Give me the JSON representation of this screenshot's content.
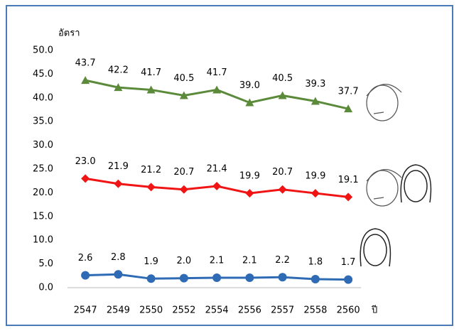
{
  "chart_data": {
    "type": "line",
    "y_label": "อัตรา",
    "x_label": "ปี",
    "categories": [
      "2547",
      "2549",
      "2550",
      "2552",
      "2554",
      "2556",
      "2557",
      "2558",
      "2560"
    ],
    "series": [
      {
        "color": "#5b8a3a",
        "marker": "triangle",
        "values": [
          43.7,
          42.2,
          41.7,
          40.5,
          41.7,
          39.0,
          40.5,
          39.3,
          37.7
        ],
        "value_labels": [
          "43.7",
          "42.2",
          "41.7",
          "40.5",
          "41.7",
          "39.0",
          "40.5",
          "39.3",
          "37.7"
        ]
      },
      {
        "color": "#f01414",
        "marker": "diamond",
        "values": [
          23.0,
          21.9,
          21.2,
          20.7,
          21.4,
          19.9,
          20.7,
          19.9,
          19.1
        ],
        "value_labels": [
          "23.0",
          "21.9",
          "21.2",
          "20.7",
          "21.4",
          "19.9",
          "20.7",
          "19.9",
          "19.1"
        ]
      },
      {
        "color": "#2f6bb5",
        "marker": "circle",
        "values": [
          2.6,
          2.8,
          1.9,
          2.0,
          2.1,
          2.1,
          2.2,
          1.8,
          1.7
        ],
        "value_labels": [
          "2.6",
          "2.8",
          "1.9",
          "2.0",
          "2.1",
          "2.1",
          "2.2",
          "1.8",
          "1.7"
        ]
      }
    ],
    "ylim": [
      0,
      50
    ],
    "yticks": [
      {
        "value": 0,
        "label": "0.0"
      },
      {
        "value": 5,
        "label": "5.0"
      },
      {
        "value": 10,
        "label": "10.0"
      },
      {
        "value": 15,
        "label": "15.0"
      },
      {
        "value": 20,
        "label": "20.0"
      },
      {
        "value": 25,
        "label": "25.0"
      },
      {
        "value": 30,
        "label": "30.0"
      },
      {
        "value": 35,
        "label": "35.0"
      },
      {
        "value": 40,
        "label": "40.0"
      },
      {
        "value": 45,
        "label": "45.0"
      },
      {
        "value": 50,
        "label": "50.0"
      }
    ],
    "grid": false
  }
}
